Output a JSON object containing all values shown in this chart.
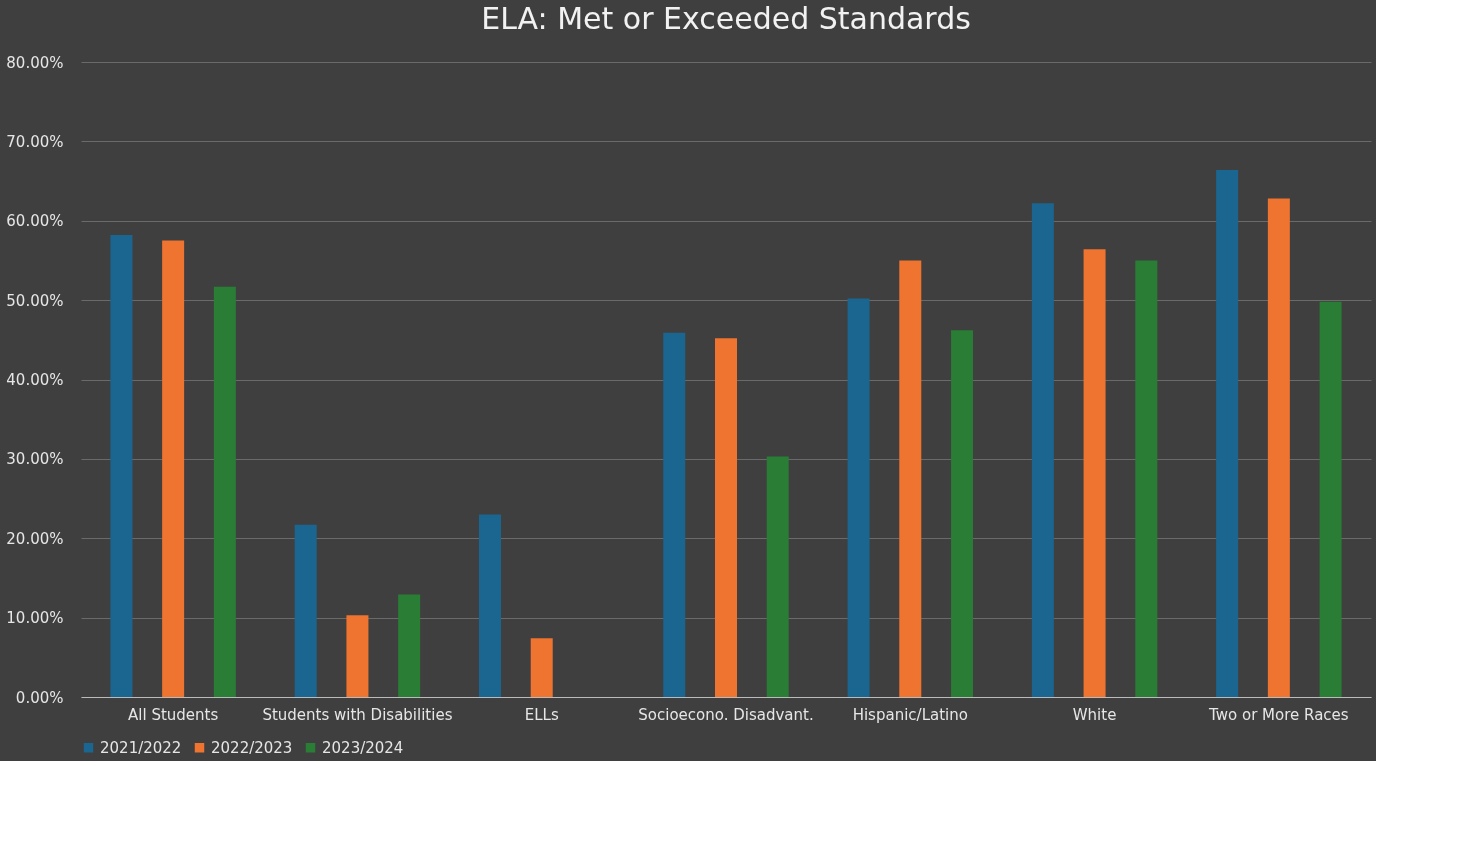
{
  "chart_data": {
    "type": "bar",
    "title": "ELA: Met or Exceeded Standards",
    "categories": [
      "All Students",
      "Students with Disabilities",
      "ELLs",
      "Socioecono. Disadvant.",
      "Hispanic/Latino",
      "White",
      "Two or More Races"
    ],
    "series": [
      {
        "name": "2021/2022",
        "color": "#1b6690",
        "values": [
          58.2,
          21.7,
          23.0,
          45.9,
          50.2,
          62.2,
          66.4
        ]
      },
      {
        "name": "2022/2023",
        "color": "#ee7430",
        "values": [
          57.5,
          10.3,
          7.4,
          45.2,
          55.0,
          56.4,
          62.8
        ]
      },
      {
        "name": "2023/2024",
        "color": "#2a7d34",
        "values": [
          51.7,
          12.9,
          null,
          30.3,
          46.2,
          55.0,
          49.8
        ]
      }
    ],
    "ylim": [
      0,
      80
    ],
    "yticks": [
      {
        "value": 0,
        "label": "0.00%"
      },
      {
        "value": 10,
        "label": "10.00%"
      },
      {
        "value": 20,
        "label": "20.00%"
      },
      {
        "value": 30,
        "label": "30.00%"
      },
      {
        "value": 40,
        "label": "40.00%"
      },
      {
        "value": 50,
        "label": "50.00%"
      },
      {
        "value": 60,
        "label": "60.00%"
      },
      {
        "value": 70,
        "label": "70.00%"
      },
      {
        "value": 80,
        "label": "80.00%"
      }
    ],
    "grid": "y",
    "legend": "bottom"
  }
}
